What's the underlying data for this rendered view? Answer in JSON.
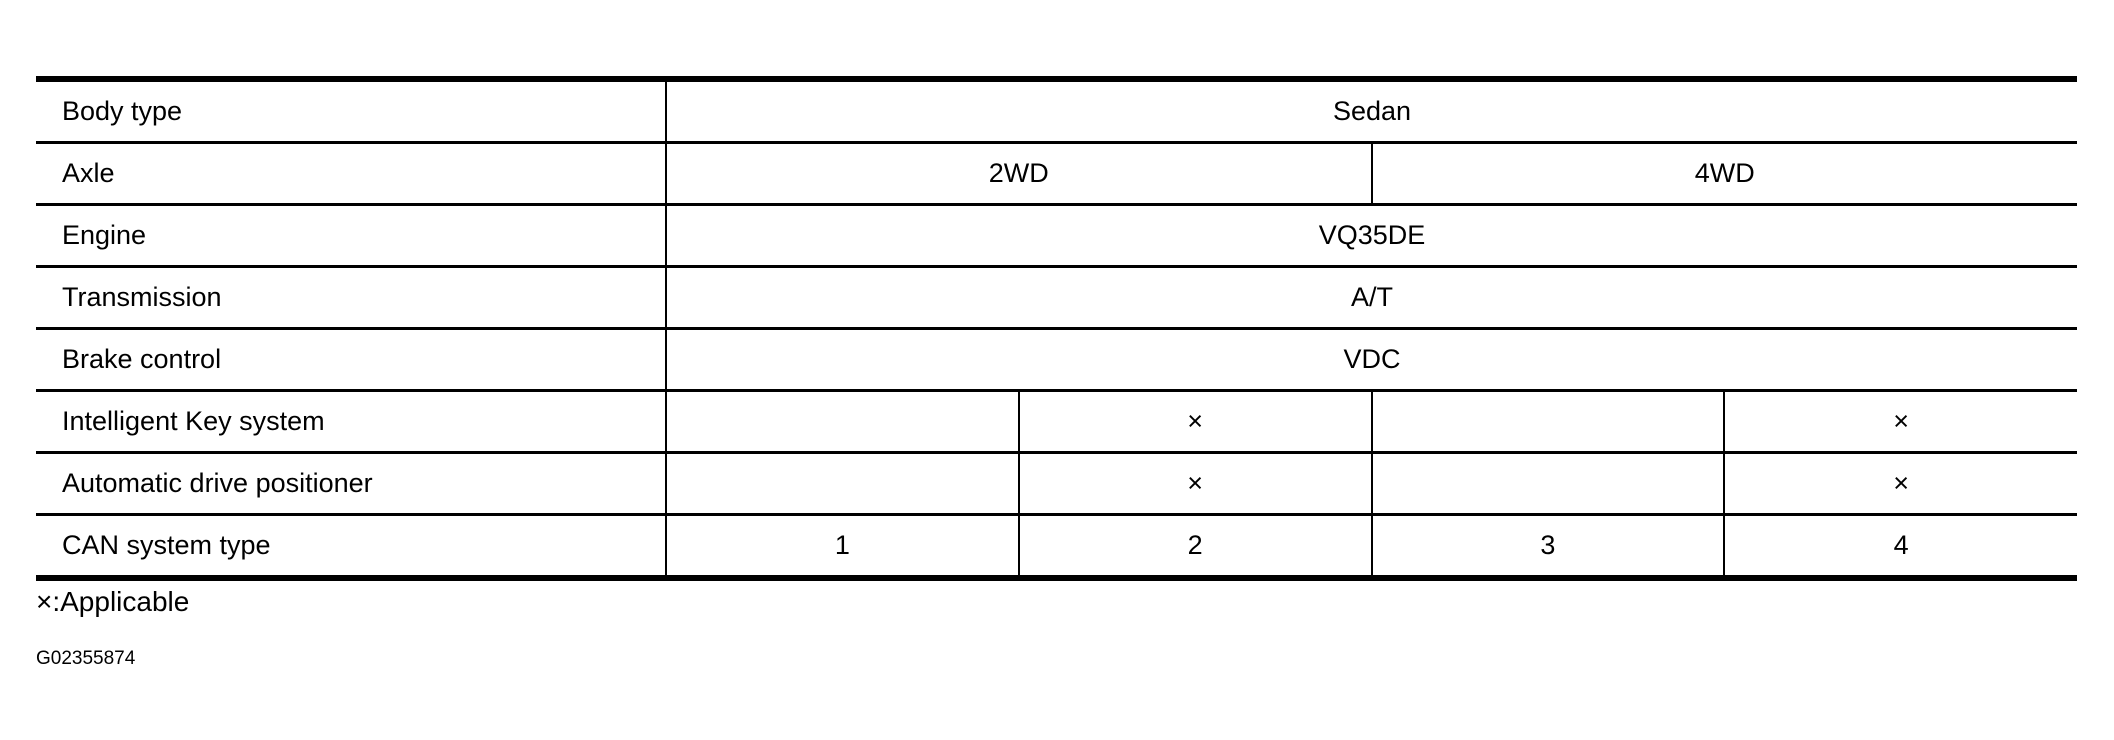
{
  "table": {
    "rows": [
      {
        "label": "Body type",
        "cells": [
          "Sedan"
        ]
      },
      {
        "label": "Axle",
        "cells": [
          "2WD",
          "4WD"
        ]
      },
      {
        "label": "Engine",
        "cells": [
          "VQ35DE"
        ]
      },
      {
        "label": "Transmission",
        "cells": [
          "A/T"
        ]
      },
      {
        "label": "Brake control",
        "cells": [
          "VDC"
        ]
      },
      {
        "label": "Intelligent Key system",
        "cells": [
          "",
          "×",
          "",
          "×"
        ]
      },
      {
        "label": "Automatic drive positioner",
        "cells": [
          "",
          "×",
          "",
          "×"
        ]
      },
      {
        "label": "CAN system type",
        "cells": [
          "1",
          "2",
          "3",
          "4"
        ]
      }
    ]
  },
  "legend_note": "×:Applicable",
  "figure_code": "G02355874"
}
